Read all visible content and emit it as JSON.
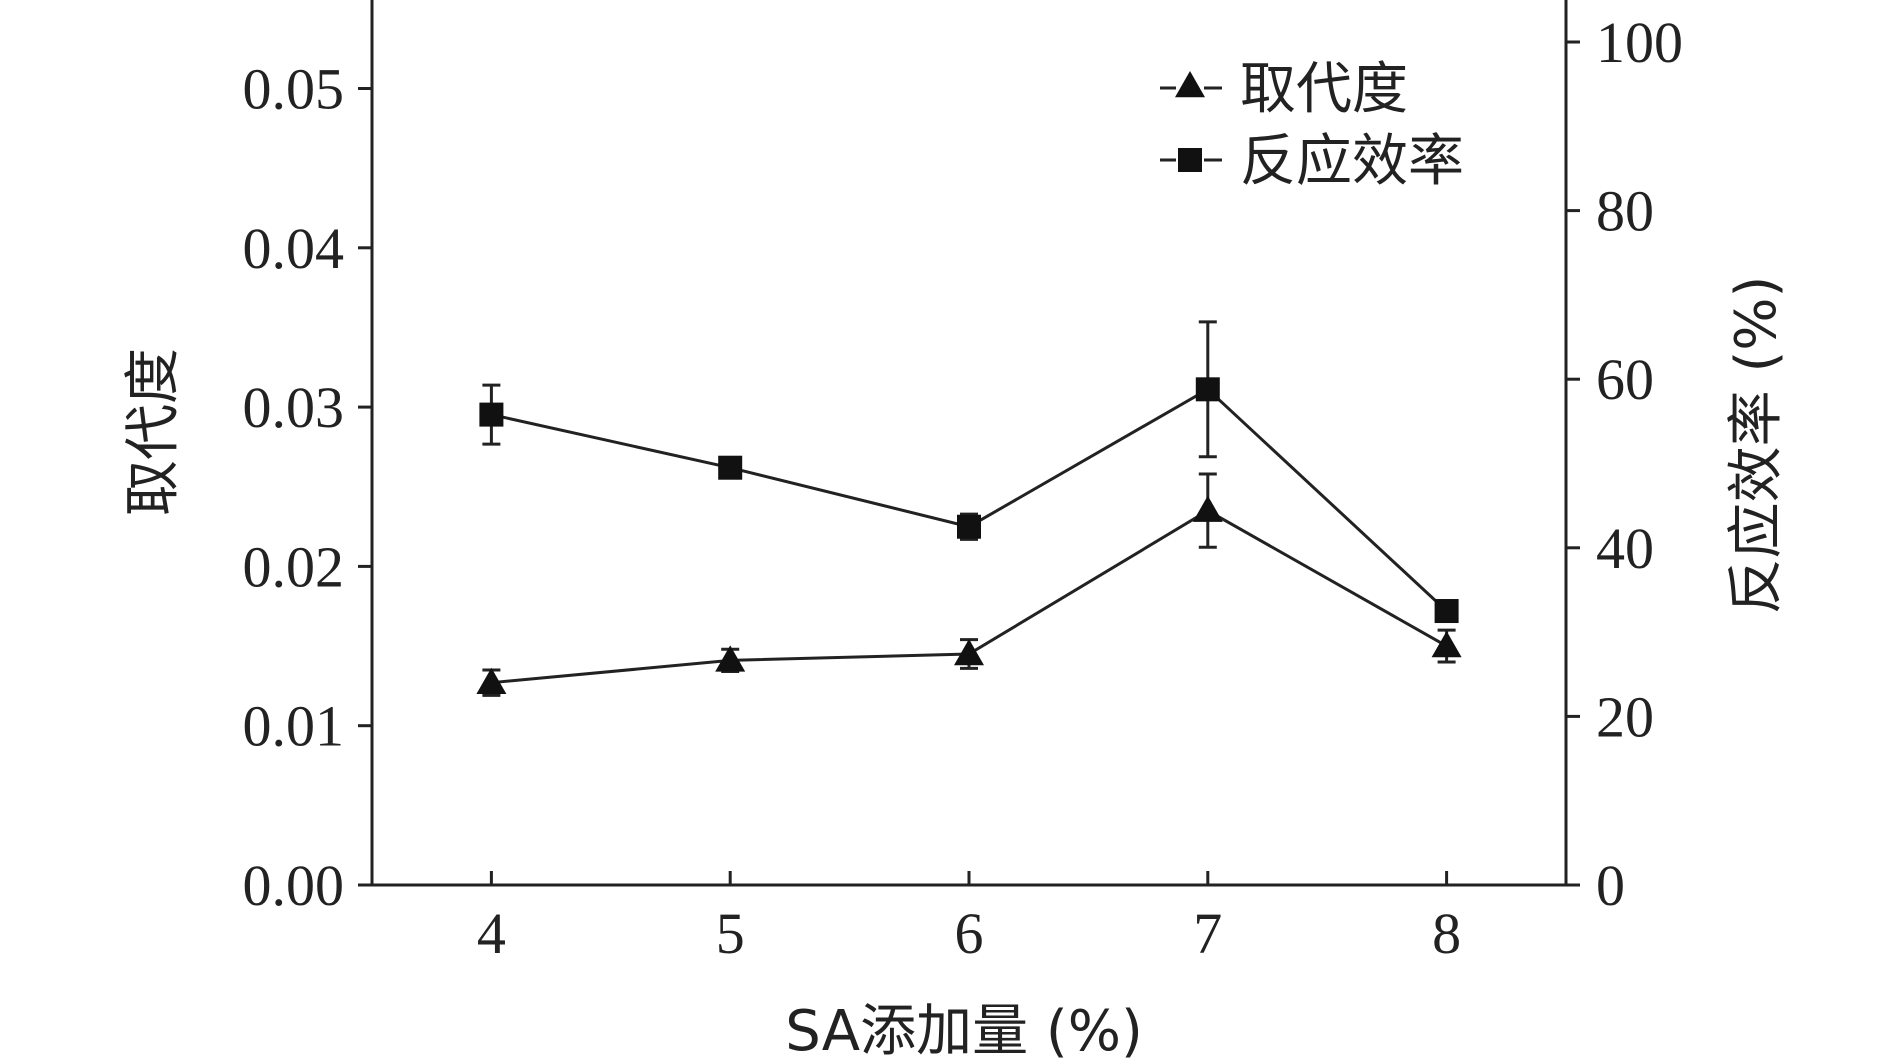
{
  "chart_data": {
    "type": "line",
    "x": [
      4,
      5,
      6,
      7,
      8
    ],
    "xlabel": "SA添加量 (%)",
    "ylabel_left": "取代度",
    "ylabel_right": "反应效率 (%)",
    "xlim": [
      3.5,
      8.5
    ],
    "ylim_left": [
      0,
      0.055
    ],
    "ylim_right": [
      0,
      100
    ],
    "x_ticks": [
      4,
      5,
      6,
      7,
      8
    ],
    "y_left_ticks": [
      "0.00",
      "0.01",
      "0.02",
      "0.03",
      "0.04",
      "0.05"
    ],
    "y_right_ticks": [
      "0",
      "20",
      "40",
      "60",
      "80",
      "100"
    ],
    "legend_position": "top-right",
    "grid": false,
    "series": [
      {
        "name": "取代度",
        "axis": "left",
        "marker": "triangle",
        "values": [
          0.0127,
          0.0141,
          0.0145,
          0.0235,
          0.015
        ],
        "errors": [
          0.0008,
          0.0007,
          0.0009,
          0.0023,
          0.001
        ]
      },
      {
        "name": "反应效率",
        "axis": "right",
        "marker": "square",
        "values": [
          55.8,
          49.5,
          42.5,
          58.8,
          32.5
        ],
        "errors": [
          3.5,
          1.0,
          1.5,
          8.0,
          1.0
        ]
      }
    ]
  }
}
